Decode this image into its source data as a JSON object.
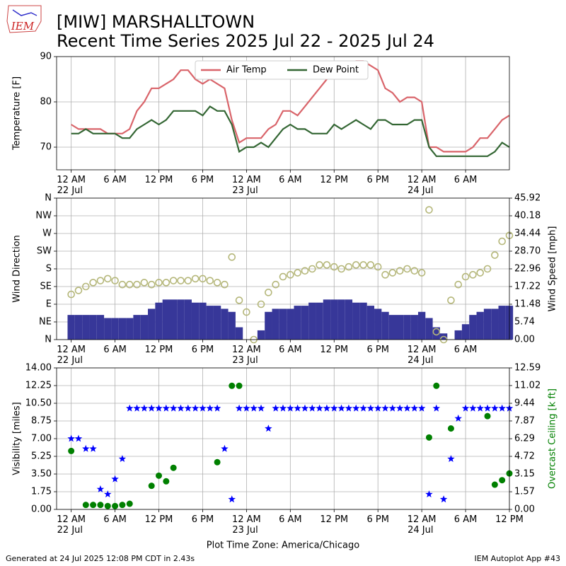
{
  "header": {
    "logo_text": "IEM",
    "title": "[MIW] MARSHALLTOWN",
    "subtitle": "Recent Time Series 2025 Jul 22 - 2025 Jul 24"
  },
  "footer": {
    "left": "Generated at 24 Jul 2025 12:08 PM CDT in 2.43s",
    "right": "IEM Autoplot App #43"
  },
  "chart_data": [
    {
      "type": "line",
      "ylabel": "Temperature [F]",
      "legend": "upper center",
      "grid": true,
      "xlim": [
        "21 Jul 22:00",
        "24 Jul 12:00"
      ],
      "ylim": [
        65,
        90
      ],
      "yticks": [
        70,
        80,
        90
      ],
      "xticks": [
        {
          "value": "22 Jul 00:00",
          "label": "12 AM\n22 Jul"
        },
        {
          "value": "22 Jul 06:00",
          "label": "6 AM"
        },
        {
          "value": "22 Jul 12:00",
          "label": "12 PM"
        },
        {
          "value": "22 Jul 18:00",
          "label": "6 PM"
        },
        {
          "value": "23 Jul 00:00",
          "label": "12 AM\n23 Jul"
        },
        {
          "value": "23 Jul 06:00",
          "label": "6 AM"
        },
        {
          "value": "23 Jul 12:00",
          "label": "12 PM"
        },
        {
          "value": "23 Jul 18:00",
          "label": "6 PM"
        },
        {
          "value": "24 Jul 00:00",
          "label": "12 AM\n24 Jul"
        },
        {
          "value": "24 Jul 06:00",
          "label": "6 AM"
        }
      ],
      "x": [
        "22 Jul 00:00",
        "22 Jul 01:00",
        "22 Jul 02:00",
        "22 Jul 03:00",
        "22 Jul 04:00",
        "22 Jul 05:00",
        "22 Jul 06:00",
        "22 Jul 07:00",
        "22 Jul 08:00",
        "22 Jul 09:00",
        "22 Jul 10:00",
        "22 Jul 11:00",
        "22 Jul 12:00",
        "22 Jul 13:00",
        "22 Jul 14:00",
        "22 Jul 15:00",
        "22 Jul 16:00",
        "22 Jul 17:00",
        "22 Jul 18:00",
        "22 Jul 19:00",
        "22 Jul 20:00",
        "22 Jul 21:00",
        "22 Jul 22:00",
        "22 Jul 23:00",
        "23 Jul 00:00",
        "23 Jul 01:00",
        "23 Jul 02:00",
        "23 Jul 03:00",
        "23 Jul 04:00",
        "23 Jul 05:00",
        "23 Jul 06:00",
        "23 Jul 07:00",
        "23 Jul 08:00",
        "23 Jul 09:00",
        "23 Jul 10:00",
        "23 Jul 11:00",
        "23 Jul 12:00",
        "23 Jul 13:00",
        "23 Jul 14:00",
        "23 Jul 15:00",
        "23 Jul 16:00",
        "23 Jul 17:00",
        "23 Jul 18:00",
        "23 Jul 19:00",
        "23 Jul 20:00",
        "23 Jul 21:00",
        "23 Jul 22:00",
        "23 Jul 23:00",
        "24 Jul 00:00",
        "24 Jul 01:00",
        "24 Jul 02:00",
        "24 Jul 03:00",
        "24 Jul 04:00",
        "24 Jul 05:00",
        "24 Jul 06:00",
        "24 Jul 07:00",
        "24 Jul 08:00",
        "24 Jul 09:00",
        "24 Jul 10:00",
        "24 Jul 11:00",
        "24 Jul 12:00"
      ],
      "series": [
        {
          "name": "Air Temp",
          "color": "#d9646a",
          "type": "line",
          "values": [
            75,
            74,
            74,
            74,
            74,
            73,
            73,
            73,
            74,
            78,
            80,
            83,
            83,
            84,
            85,
            87,
            87,
            85,
            84,
            85,
            84,
            83,
            76,
            71,
            72,
            72,
            72,
            74,
            75,
            78,
            78,
            77,
            79,
            81,
            83,
            85,
            86,
            87,
            88,
            89,
            89,
            88,
            87,
            83,
            82,
            80,
            81,
            81,
            80,
            70,
            70,
            69,
            69,
            69,
            69,
            70,
            72,
            72,
            74,
            76,
            77
          ]
        },
        {
          "name": "Dew Point",
          "color": "#336633",
          "type": "line",
          "values": [
            73,
            73,
            74,
            73,
            73,
            73,
            73,
            72,
            72,
            74,
            75,
            76,
            75,
            76,
            78,
            78,
            78,
            78,
            77,
            79,
            78,
            78,
            75,
            69,
            70,
            70,
            71,
            70,
            72,
            74,
            75,
            74,
            74,
            73,
            73,
            73,
            75,
            74,
            75,
            76,
            75,
            74,
            76,
            76,
            75,
            75,
            75,
            76,
            76,
            70,
            68,
            68,
            68,
            68,
            68,
            68,
            68,
            68,
            69,
            71,
            70
          ]
        }
      ]
    },
    {
      "type": "combo",
      "ylabel": "Wind Direction",
      "y2label": "Wind Speed [mph]",
      "grid": true,
      "xlim": [
        "21 Jul 22:00",
        "24 Jul 12:00"
      ],
      "ylim": [
        0,
        360
      ],
      "yticks": [
        {
          "value": 0,
          "label": "N"
        },
        {
          "value": 45,
          "label": "NE"
        },
        {
          "value": 90,
          "label": "E"
        },
        {
          "value": 135,
          "label": "SE"
        },
        {
          "value": 180,
          "label": "S"
        },
        {
          "value": 225,
          "label": "SW"
        },
        {
          "value": 270,
          "label": "W"
        },
        {
          "value": 315,
          "label": "NW"
        },
        {
          "value": 360,
          "label": "N"
        }
      ],
      "y2lim": [
        0,
        45.92
      ],
      "y2ticks": [
        {
          "value": 0,
          "label": "0.00"
        },
        5.74,
        11.48,
        17.22,
        22.96,
        {
          "value": 28.7,
          "label": "28.70"
        },
        34.44,
        40.18,
        45.92
      ],
      "xticks": [
        {
          "value": "22 Jul 00:00",
          "label": "12 AM\n22 Jul"
        },
        {
          "value": "22 Jul 06:00",
          "label": "6 AM"
        },
        {
          "value": "22 Jul 12:00",
          "label": "12 PM"
        },
        {
          "value": "22 Jul 18:00",
          "label": "6 PM"
        },
        {
          "value": "23 Jul 00:00",
          "label": "12 AM\n23 Jul"
        },
        {
          "value": "23 Jul 06:00",
          "label": "6 AM"
        },
        {
          "value": "23 Jul 12:00",
          "label": "12 PM"
        },
        {
          "value": "23 Jul 18:00",
          "label": "6 PM"
        },
        {
          "value": "24 Jul 00:00",
          "label": "12 AM\n24 Jul"
        },
        {
          "value": "24 Jul 06:00",
          "label": "6 AM"
        }
      ],
      "x": [
        "22 Jul 00:00",
        "22 Jul 01:00",
        "22 Jul 02:00",
        "22 Jul 03:00",
        "22 Jul 04:00",
        "22 Jul 05:00",
        "22 Jul 06:00",
        "22 Jul 07:00",
        "22 Jul 08:00",
        "22 Jul 09:00",
        "22 Jul 10:00",
        "22 Jul 11:00",
        "22 Jul 12:00",
        "22 Jul 13:00",
        "22 Jul 14:00",
        "22 Jul 15:00",
        "22 Jul 16:00",
        "22 Jul 17:00",
        "22 Jul 18:00",
        "22 Jul 19:00",
        "22 Jul 20:00",
        "22 Jul 21:00",
        "22 Jul 22:00",
        "22 Jul 23:00",
        "23 Jul 00:00",
        "23 Jul 01:00",
        "23 Jul 02:00",
        "23 Jul 03:00",
        "23 Jul 04:00",
        "23 Jul 05:00",
        "23 Jul 06:00",
        "23 Jul 07:00",
        "23 Jul 08:00",
        "23 Jul 09:00",
        "23 Jul 10:00",
        "23 Jul 11:00",
        "23 Jul 12:00",
        "23 Jul 13:00",
        "23 Jul 14:00",
        "23 Jul 15:00",
        "23 Jul 16:00",
        "23 Jul 17:00",
        "23 Jul 18:00",
        "23 Jul 19:00",
        "23 Jul 20:00",
        "23 Jul 21:00",
        "23 Jul 22:00",
        "23 Jul 23:00",
        "24 Jul 00:00",
        "24 Jul 01:00",
        "24 Jul 02:00",
        "24 Jul 03:00",
        "24 Jul 04:00",
        "24 Jul 05:00",
        "24 Jul 06:00",
        "24 Jul 07:00",
        "24 Jul 08:00",
        "24 Jul 09:00",
        "24 Jul 10:00",
        "24 Jul 11:00",
        "24 Jul 12:00"
      ],
      "series": [
        {
          "color": "#373799",
          "type": "bar",
          "axis": "y2",
          "values": [
            8,
            8,
            8,
            8,
            8,
            7,
            7,
            7,
            7,
            8,
            8,
            10,
            12,
            13,
            13,
            13,
            13,
            12,
            12,
            11,
            11,
            10,
            9,
            4,
            0,
            0,
            3,
            9,
            10,
            10,
            10,
            11,
            11,
            12,
            12,
            13,
            13,
            13,
            13,
            12,
            12,
            11,
            10,
            9,
            8,
            8,
            8,
            8,
            9,
            7,
            4,
            2,
            0,
            3,
            5,
            8,
            9,
            10,
            10,
            11,
            11
          ]
        },
        {
          "color": "#b5b77a",
          "type": "scatter",
          "marker": "circle-open",
          "values": [
            115,
            125,
            135,
            145,
            150,
            155,
            150,
            140,
            140,
            140,
            145,
            140,
            145,
            145,
            150,
            150,
            150,
            155,
            155,
            150,
            145,
            140,
            210,
            100,
            70,
            0,
            90,
            120,
            140,
            160,
            165,
            170,
            175,
            180,
            190,
            190,
            185,
            180,
            185,
            190,
            190,
            190,
            185,
            165,
            170,
            175,
            180,
            175,
            170,
            330,
            20,
            0,
            100,
            140,
            160,
            165,
            170,
            180,
            215,
            250,
            265
          ]
        }
      ]
    },
    {
      "type": "scatter",
      "ylabel": "Visibility [miles]",
      "y2label": "Overcast Ceiling [k ft]",
      "xlabel": "Plot Time Zone: America/Chicago",
      "grid": true,
      "xlim": [
        "21 Jul 22:00",
        "24 Jul 12:00"
      ],
      "ylim": [
        0,
        14
      ],
      "yticks": [
        {
          "value": 0,
          "label": "0.00"
        },
        1.75,
        {
          "value": 3.5,
          "label": "3.50"
        },
        5.25,
        {
          "value": 7,
          "label": "7.00"
        },
        8.75,
        {
          "value": 10.5,
          "label": "10.50"
        },
        12.25,
        {
          "value": 14,
          "label": "14.00"
        }
      ],
      "y2lim": [
        0,
        12.59
      ],
      "y2ticks": [
        {
          "value": 0,
          "label": "0.00"
        },
        1.57,
        3.15,
        4.72,
        6.29,
        7.87,
        9.44,
        11.02,
        12.59
      ],
      "xticks": [
        {
          "value": "22 Jul 00:00",
          "label": "12 AM\n22 Jul"
        },
        {
          "value": "22 Jul 06:00",
          "label": "6 AM"
        },
        {
          "value": "22 Jul 12:00",
          "label": "12 PM"
        },
        {
          "value": "22 Jul 18:00",
          "label": "6 PM"
        },
        {
          "value": "23 Jul 00:00",
          "label": "12 AM\n23 Jul"
        },
        {
          "value": "23 Jul 06:00",
          "label": "6 AM"
        },
        {
          "value": "23 Jul 12:00",
          "label": "12 PM"
        },
        {
          "value": "23 Jul 18:00",
          "label": "6 PM"
        },
        {
          "value": "24 Jul 00:00",
          "label": "12 AM\n24 Jul"
        },
        {
          "value": "24 Jul 06:00",
          "label": "6 AM"
        },
        {
          "value": "24 Jul 12:00",
          "label": "12 PM"
        }
      ],
      "x": [
        "22 Jul 00:00",
        "22 Jul 01:00",
        "22 Jul 02:00",
        "22 Jul 03:00",
        "22 Jul 04:00",
        "22 Jul 05:00",
        "22 Jul 06:00",
        "22 Jul 07:00",
        "22 Jul 08:00",
        "22 Jul 09:00",
        "22 Jul 10:00",
        "22 Jul 11:00",
        "22 Jul 12:00",
        "22 Jul 13:00",
        "22 Jul 14:00",
        "22 Jul 15:00",
        "22 Jul 16:00",
        "22 Jul 17:00",
        "22 Jul 18:00",
        "22 Jul 19:00",
        "22 Jul 20:00",
        "22 Jul 21:00",
        "22 Jul 22:00",
        "22 Jul 23:00",
        "23 Jul 00:00",
        "23 Jul 01:00",
        "23 Jul 02:00",
        "23 Jul 03:00",
        "23 Jul 04:00",
        "23 Jul 05:00",
        "23 Jul 06:00",
        "23 Jul 07:00",
        "23 Jul 08:00",
        "23 Jul 09:00",
        "23 Jul 10:00",
        "23 Jul 11:00",
        "23 Jul 12:00",
        "23 Jul 13:00",
        "23 Jul 14:00",
        "23 Jul 15:00",
        "23 Jul 16:00",
        "23 Jul 17:00",
        "23 Jul 18:00",
        "23 Jul 19:00",
        "23 Jul 20:00",
        "23 Jul 21:00",
        "23 Jul 22:00",
        "23 Jul 23:00",
        "24 Jul 00:00",
        "24 Jul 01:00",
        "24 Jul 02:00",
        "24 Jul 03:00",
        "24 Jul 04:00",
        "24 Jul 05:00",
        "24 Jul 06:00",
        "24 Jul 07:00",
        "24 Jul 08:00",
        "24 Jul 09:00",
        "24 Jul 10:00",
        "24 Jul 11:00",
        "24 Jul 12:00"
      ],
      "series": [
        {
          "color": "#0000ff",
          "type": "scatter",
          "marker": "star",
          "values": [
            7,
            7,
            6,
            6,
            2,
            1.5,
            3,
            5,
            10,
            10,
            10,
            10,
            10,
            10,
            10,
            10,
            10,
            10,
            10,
            10,
            10,
            6,
            1,
            10,
            10,
            10,
            10,
            8,
            10,
            10,
            10,
            10,
            10,
            10,
            10,
            10,
            10,
            10,
            10,
            10,
            10,
            10,
            10,
            10,
            10,
            10,
            10,
            10,
            10,
            1.5,
            10,
            1,
            5,
            9,
            10,
            10,
            10,
            10,
            10,
            10,
            10
          ]
        },
        {
          "color": "#008000",
          "type": "scatter",
          "marker": "circle",
          "axis": "y2",
          "values": [
            5.2,
            null,
            0.4,
            0.4,
            0.4,
            0.3,
            0.3,
            0.4,
            0.5,
            null,
            null,
            2.1,
            3.0,
            2.5,
            3.7,
            null,
            null,
            null,
            null,
            null,
            4.2,
            null,
            11,
            11,
            null,
            null,
            null,
            null,
            null,
            null,
            null,
            null,
            null,
            null,
            null,
            null,
            null,
            null,
            null,
            null,
            null,
            null,
            null,
            null,
            null,
            null,
            null,
            null,
            null,
            6.4,
            11,
            null,
            7.2,
            null,
            null,
            null,
            null,
            8.3,
            2.2,
            2.6,
            3.2
          ]
        }
      ]
    }
  ]
}
